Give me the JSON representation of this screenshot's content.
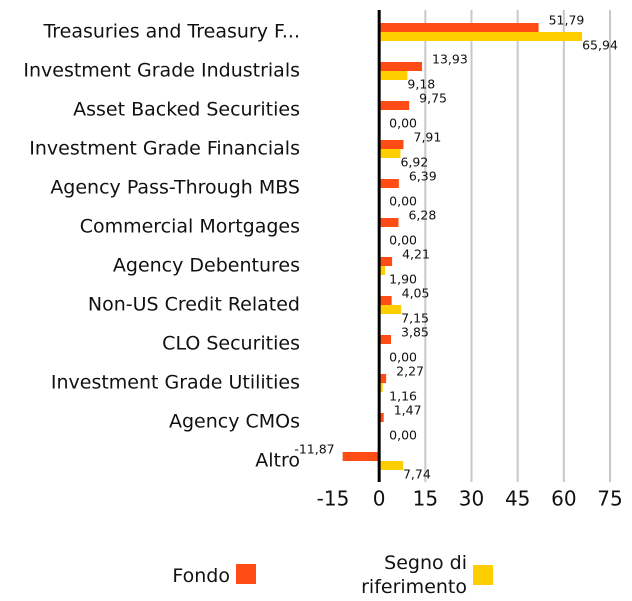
{
  "chart_data": {
    "type": "bar",
    "orientation": "horizontal",
    "categories": [
      "Treasuries and Treasury F...",
      "Investment Grade Industrials",
      "Asset Backed Securities",
      "Investment Grade Financials",
      "Agency Pass-Through MBS",
      "Commercial Mortgages",
      "Agency Debentures",
      "Non-US Credit Related",
      "CLO Securities",
      "Investment Grade Utilities",
      "Agency CMOs",
      "Altro"
    ],
    "series": [
      {
        "name": "Fondo",
        "color": "#ff4b14",
        "values": [
          51.79,
          13.93,
          9.75,
          7.91,
          6.39,
          6.28,
          4.21,
          4.05,
          3.85,
          2.27,
          1.47,
          -11.87
        ],
        "value_labels": [
          "51,79",
          "13,93",
          "9,75",
          "7,91",
          "6,39",
          "6,28",
          "4,21",
          "4,05",
          "3,85",
          "2,27",
          "1,47",
          "-11,87"
        ]
      },
      {
        "name": "Segno di riferimento",
        "color": "#ffce00",
        "values": [
          65.94,
          9.18,
          0.0,
          6.92,
          0.0,
          0.0,
          1.9,
          7.15,
          0.0,
          1.16,
          0.0,
          7.74
        ],
        "value_labels": [
          "65,94",
          "9,18",
          "0,00",
          "6,92",
          "0,00",
          "0,00",
          "1,90",
          "7,15",
          "0,00",
          "1,16",
          "0,00",
          "7,74"
        ]
      }
    ],
    "xlim": [
      -15,
      75
    ],
    "xticks": [
      -15,
      0,
      15,
      30,
      45,
      60,
      75
    ],
    "grid": true
  }
}
